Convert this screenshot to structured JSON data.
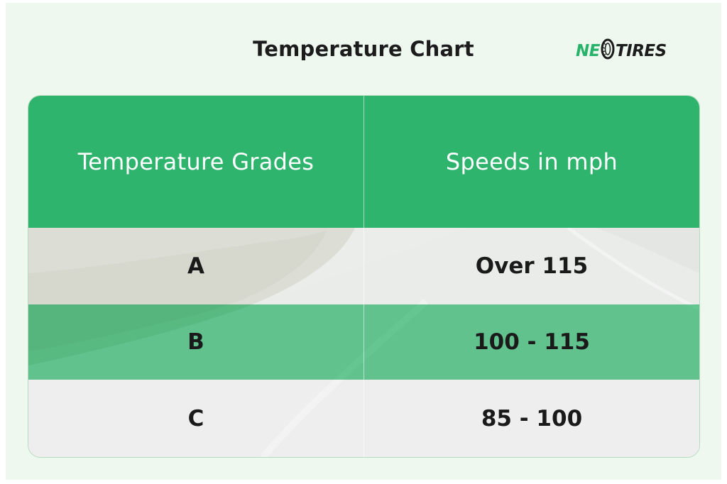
{
  "title": "Temperature Chart",
  "logo": {
    "part1": "NE",
    "part2": "TIRES",
    "icon": "tire-icon",
    "accent": "#27b36a"
  },
  "colors": {
    "header_bg": "#2fb46d",
    "page_bg": "#eef8ef",
    "text_dark": "#1a1a1a"
  },
  "table": {
    "headers": [
      "Temperature Grades",
      "Speeds in mph"
    ],
    "rows": [
      {
        "grade": "A",
        "speed": "Over 115"
      },
      {
        "grade": "B",
        "speed": "100 - 115"
      },
      {
        "grade": "C",
        "speed": "85 - 100"
      }
    ]
  }
}
